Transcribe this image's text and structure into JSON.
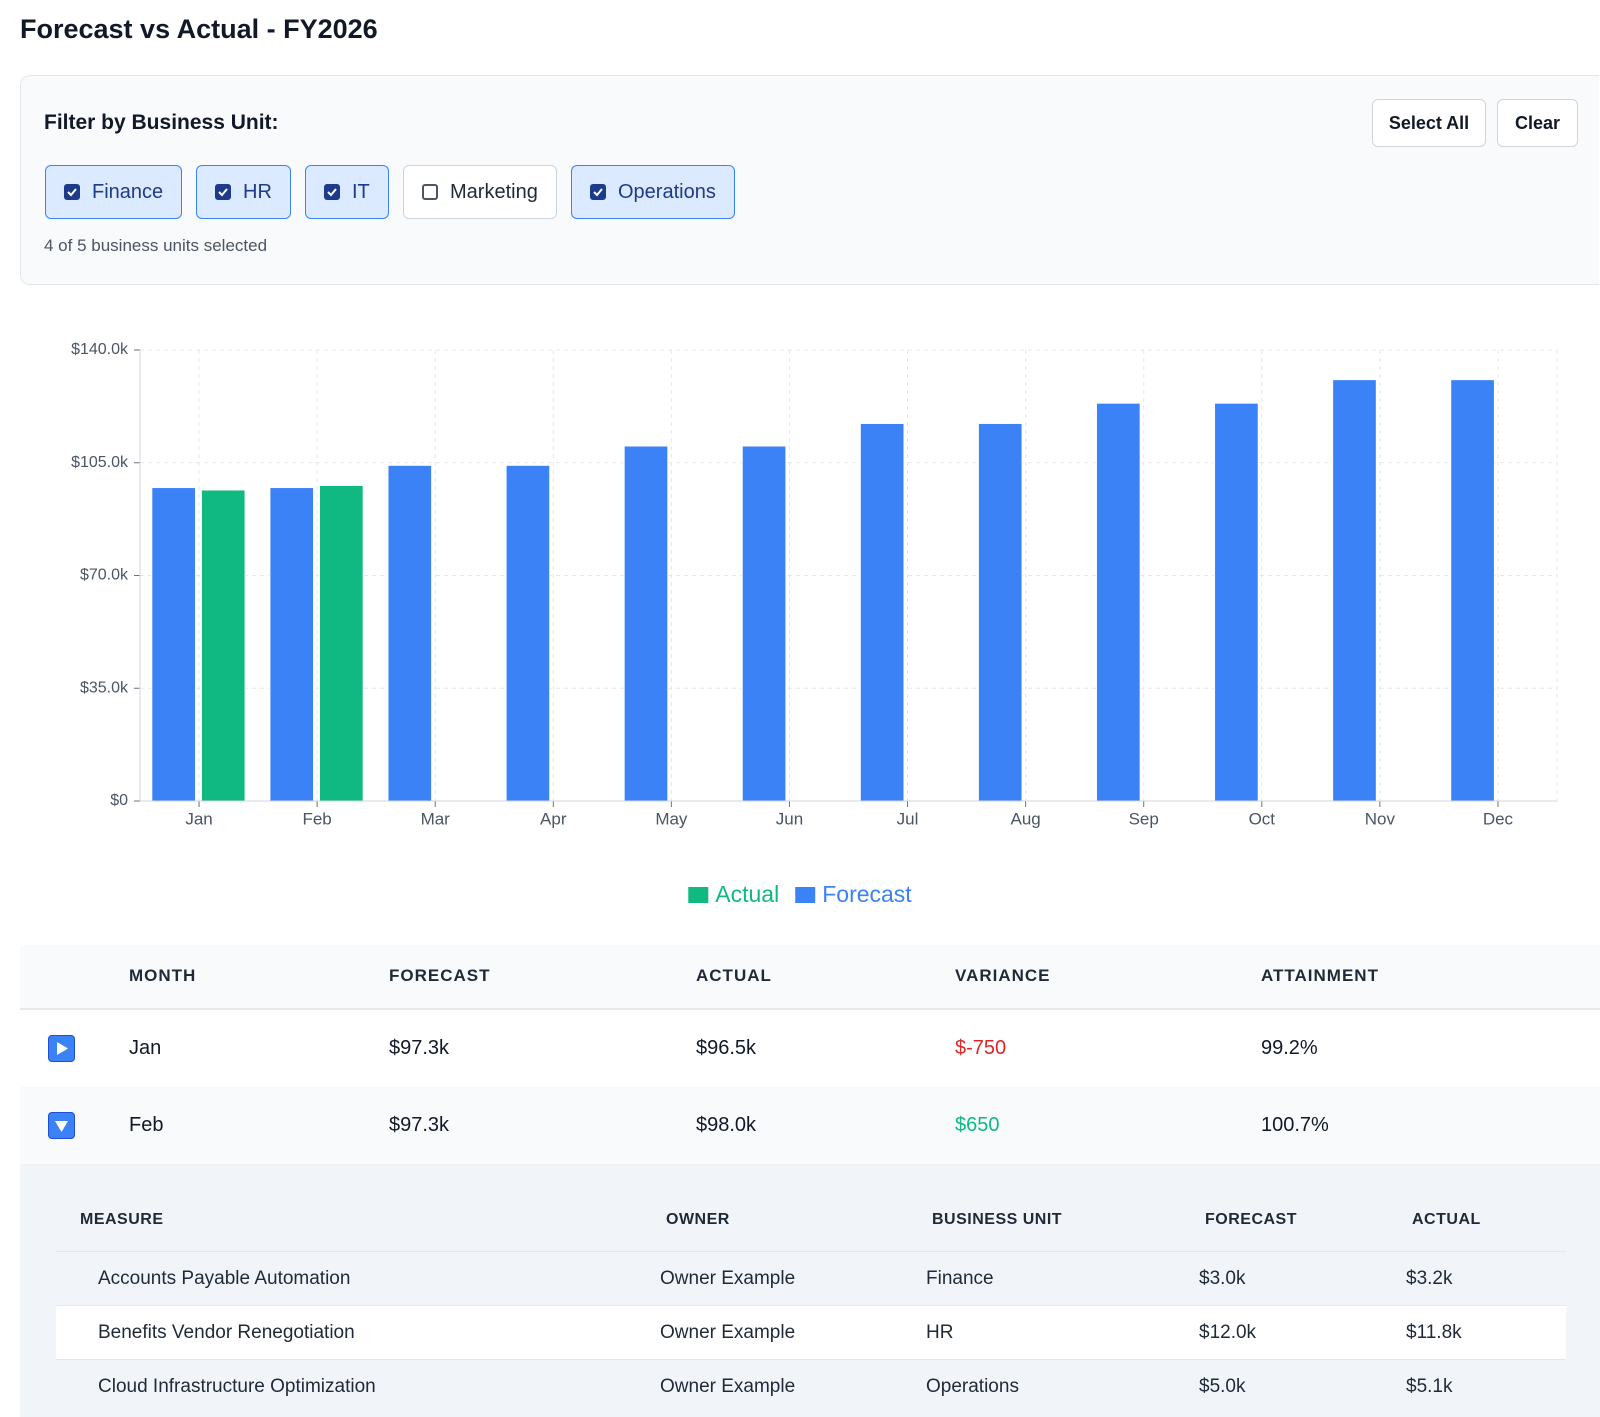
{
  "header": {
    "title": "Forecast vs Actual - FY2026"
  },
  "filter": {
    "label": "Filter by Business Unit:",
    "buttons": [
      "Select All",
      "Clear"
    ],
    "units": [
      {
        "name": "Finance",
        "checked": true
      },
      {
        "name": "HR",
        "checked": true
      },
      {
        "name": "IT",
        "checked": true
      },
      {
        "name": "Marketing",
        "checked": false
      },
      {
        "name": "Operations",
        "checked": true
      }
    ],
    "status": "4 of 5 business units selected"
  },
  "chart_data": {
    "type": "bar",
    "categories": [
      "Jan",
      "Feb",
      "Mar",
      "Apr",
      "May",
      "Jun",
      "Jul",
      "Aug",
      "Sep",
      "Oct",
      "Nov",
      "Dec"
    ],
    "series": [
      {
        "name": "Actual",
        "color": "#10b981",
        "values": [
          96550,
          97950,
          null,
          null,
          null,
          null,
          null,
          null,
          null,
          null,
          null,
          null
        ]
      },
      {
        "name": "Forecast",
        "color": "#3b82f6",
        "values": [
          97300,
          97300,
          104200,
          104200,
          110200,
          110200,
          117200,
          117200,
          123500,
          123500,
          130800,
          130800
        ]
      }
    ],
    "ylim": [
      0,
      140000
    ],
    "yticks": [
      {
        "value": 0,
        "label": "$0"
      },
      {
        "value": 35000,
        "label": "$35.0k"
      },
      {
        "value": 70000,
        "label": "$70.0k"
      },
      {
        "value": 105000,
        "label": "$105.0k"
      },
      {
        "value": 140000,
        "label": "$140.0k"
      }
    ],
    "grid": true,
    "legend": "bottom"
  },
  "table": {
    "columns": [
      "MONTH",
      "FORECAST",
      "ACTUAL",
      "VARIANCE",
      "ATTAINMENT"
    ],
    "rows": [
      {
        "expanded": false,
        "cells": [
          "Jan",
          "$97.3k",
          "$96.5k",
          "$-750",
          "99.2%"
        ]
      },
      {
        "expanded": true,
        "cells": [
          "Feb",
          "$97.3k",
          "$98.0k",
          "$650",
          "100.7%"
        ]
      }
    ]
  },
  "detail": {
    "columns": [
      "MEASURE",
      "OWNER",
      "BUSINESS UNIT",
      "FORECAST",
      "ACTUAL"
    ],
    "rows": [
      [
        "Accounts Payable Automation",
        "Owner Example",
        "Finance",
        "$3.0k",
        "$3.2k"
      ],
      [
        "Benefits Vendor Renegotiation",
        "Owner Example",
        "HR",
        "$12.0k",
        "$11.8k"
      ],
      [
        "Cloud Infrastructure Optimization",
        "Owner Example",
        "Operations",
        "$5.0k",
        "$5.1k"
      ]
    ]
  }
}
